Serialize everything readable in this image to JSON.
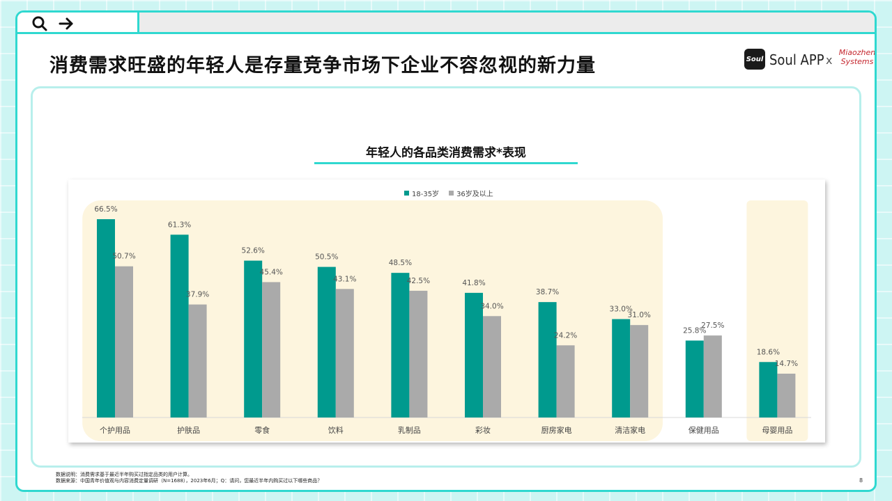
{
  "toolbar": {
    "icons": [
      "search-icon",
      "arrow-right-icon"
    ]
  },
  "page_title": "消费需求旺盛的年轻人是存量竞争市场下企业不容忽视的新力量",
  "brand": {
    "logo_mark": "Soul",
    "app_name": "Soul APP",
    "separator": "x",
    "partner_line1": "Miaozhen",
    "partner_line2": "Systems"
  },
  "colors": {
    "accent": "#2fd8d0",
    "series_young": "#009a8e",
    "series_old": "#aaaaaa",
    "highlight_band": "#fdf5de"
  },
  "chart_data": {
    "type": "bar",
    "title": "年轻人的各品类消费需求",
    "title_suffix": "*表现",
    "categories": [
      "个护用品",
      "护肤品",
      "零食",
      "饮料",
      "乳制品",
      "彩妆",
      "厨房家电",
      "清洁家电",
      "保健用品",
      "母婴用品"
    ],
    "series": [
      {
        "name": "18-35岁",
        "values": [
          66.5,
          61.3,
          52.6,
          50.5,
          48.5,
          41.8,
          38.7,
          33.0,
          25.8,
          18.6
        ],
        "labels": [
          "66.5%",
          "61.3%",
          "52.6%",
          "50.5%",
          "48.5%",
          "41.8%",
          "38.7%",
          "33.0%",
          "25.8%",
          "18.6%"
        ],
        "color": "#009a8e"
      },
      {
        "name": "36岁及以上",
        "values": [
          50.7,
          37.9,
          45.4,
          43.1,
          42.5,
          34.0,
          24.2,
          31.0,
          27.5,
          14.7
        ],
        "labels": [
          "50.7%",
          "37.9%",
          "45.4%",
          "43.1%",
          "42.5%",
          "34.0%",
          "24.2%",
          "31.0%",
          "27.5%",
          "14.7%"
        ],
        "color": "#aaaaaa"
      }
    ],
    "ylim": [
      0,
      70
    ],
    "legend_position": "top-center",
    "highlight_groups": [
      [
        "个护用品",
        "清洁家电"
      ],
      [
        "母婴用品",
        "母婴用品"
      ]
    ]
  },
  "footnotes": {
    "line1": "数据说明：消费需求基于最近半年购买过指定品类的用户计算。",
    "line2": "数据来源：中国青年价值观与内容消费定量调研（N=1688），2023年6月；Q：请问，您最近半年内购买过以下哪些商品？"
  },
  "page_number": "8"
}
